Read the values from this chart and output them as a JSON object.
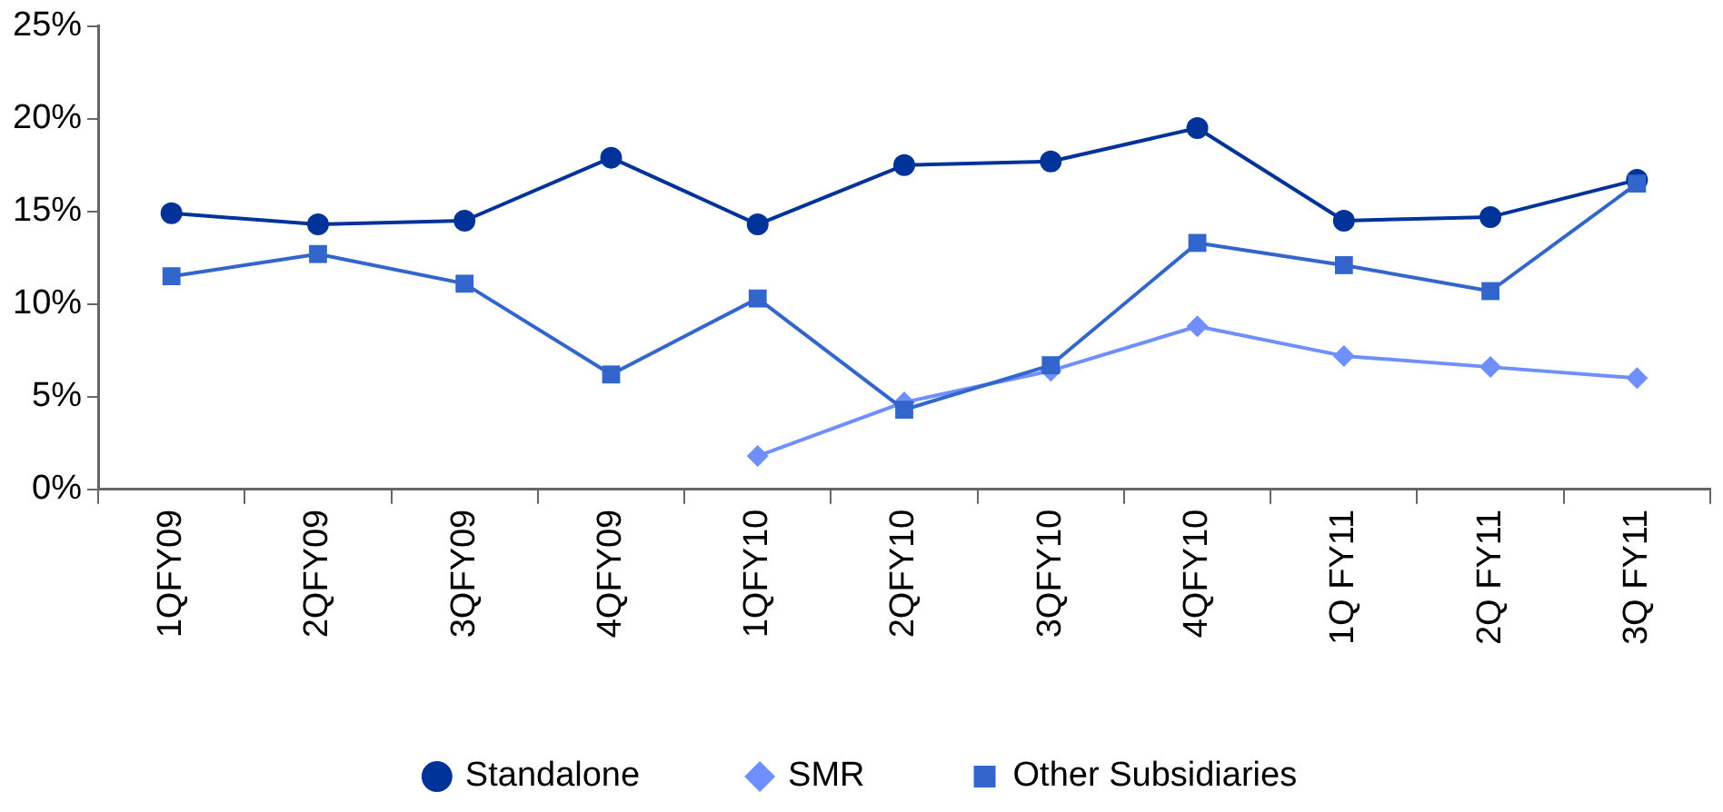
{
  "chart_data": {
    "type": "line",
    "categories": [
      "1QFY09",
      "2QFY09",
      "3QFY09",
      "4QFY09",
      "1QFY10",
      "2QFY10",
      "3QFY10",
      "4QFY10",
      "1Q FY11",
      "2Q FY11",
      "3Q FY11"
    ],
    "series": [
      {
        "name": "Standalone",
        "color": "#003399",
        "marker": "circle",
        "values": [
          14.9,
          14.3,
          14.5,
          17.9,
          14.3,
          17.5,
          17.7,
          19.5,
          14.5,
          14.7,
          16.7
        ]
      },
      {
        "name": "SMR",
        "color": "#6f8fff",
        "marker": "diamond",
        "values": [
          null,
          null,
          null,
          null,
          1.8,
          4.7,
          6.4,
          8.8,
          7.2,
          6.6,
          6.0
        ]
      },
      {
        "name": "Other Subsidiaries",
        "color": "#3366cc",
        "marker": "square",
        "values": [
          11.5,
          12.7,
          11.1,
          6.2,
          10.3,
          4.3,
          6.7,
          13.3,
          12.1,
          10.7,
          16.5
        ]
      }
    ],
    "ylim": [
      0,
      25
    ],
    "yticks": [
      {
        "value": 0,
        "label": "0%"
      },
      {
        "value": 5,
        "label": "5%"
      },
      {
        "value": 10,
        "label": "10%"
      },
      {
        "value": 15,
        "label": "15%"
      },
      {
        "value": 20,
        "label": "20%"
      },
      {
        "value": 25,
        "label": "25%"
      }
    ],
    "grid": false,
    "legend": "bottom",
    "line_style": "solid"
  }
}
